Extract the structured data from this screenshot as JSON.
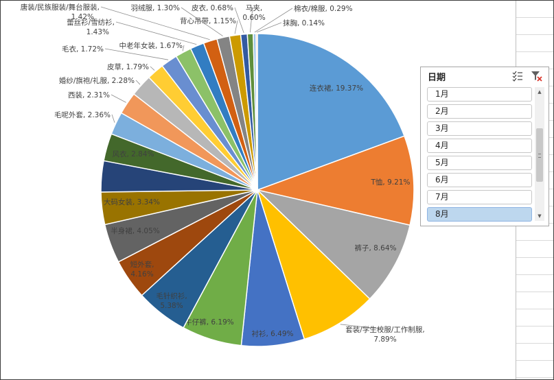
{
  "chart_data": {
    "type": "pie",
    "title": "",
    "start_angle_deg": 0,
    "direction": "clockwise",
    "slices": [
      {
        "label": "连衣裙",
        "value": 19.37,
        "display": "连衣裙, 19.37%",
        "color": "#5b9bd5"
      },
      {
        "label": "T恤",
        "value": 9.21,
        "display": "T恤, 9.21%",
        "color": "#ed7d31"
      },
      {
        "label": "裤子",
        "value": 8.64,
        "display": "裤子, 8.64%",
        "color": "#a5a5a5"
      },
      {
        "label": "套装/学生校服/工作制服",
        "value": 7.89,
        "display": "套装/学生校服/工作制服,",
        "display2": "7.89%",
        "color": "#ffc000"
      },
      {
        "label": "衬衫",
        "value": 6.49,
        "display": "衬衫, 6.49%",
        "color": "#4472c4"
      },
      {
        "label": "牛仔裤",
        "value": 6.19,
        "display": "牛仔裤, 6.19%",
        "color": "#70ad47"
      },
      {
        "label": "毛针织衫",
        "value": 5.38,
        "display": "毛针织衫,",
        "display2": "5.38%",
        "color": "#255e91"
      },
      {
        "label": "短外套",
        "value": 4.16,
        "display": "短外套,",
        "display2": "4.16%",
        "color": "#9e480e"
      },
      {
        "label": "半身裙",
        "value": 4.05,
        "display": "半身裙, 4.05%",
        "color": "#636363"
      },
      {
        "label": "大码女装",
        "value": 3.34,
        "display": "大码女装, 3.34%",
        "color": "#997300"
      },
      {
        "label": "",
        "value": 3.2,
        "display": "",
        "color": "#264478"
      },
      {
        "label": "风衣",
        "value": 2.84,
        "display": "风衣, 2.84%",
        "color": "#43682b"
      },
      {
        "label": "毛呢外套",
        "value": 2.36,
        "display": "毛呢外套, 2.36%",
        "color": "#7cafdd"
      },
      {
        "label": "西装",
        "value": 2.31,
        "display": "西装, 2.31%",
        "color": "#f1975a"
      },
      {
        "label": "婚纱/旗袍/礼服",
        "value": 2.28,
        "display": "婚纱/旗袍/礼服, 2.28%",
        "color": "#b7b7b7"
      },
      {
        "label": "皮草",
        "value": 1.79,
        "display": "皮草, 1.79%",
        "color": "#ffcd33"
      },
      {
        "label": "毛衣",
        "value": 1.72,
        "display": "毛衣, 1.72%",
        "color": "#698ed0"
      },
      {
        "label": "中老年女装",
        "value": 1.67,
        "display": "中老年女装, 1.67%",
        "color": "#8cc168"
      },
      {
        "label": "蕾丝衫/雪纺衫",
        "value": 1.43,
        "display": "蕾丝衫/雪纺衫,",
        "display2": "1.43%",
        "color": "#327dc2"
      },
      {
        "label": "唐装/民族服装/舞台服装",
        "value": 1.42,
        "display": "唐装/民族服装/舞台服装,",
        "display2": "1.42%",
        "color": "#d26012"
      },
      {
        "label": "羽绒服",
        "value": 1.3,
        "display": "羽绒服, 1.30%",
        "color": "#848484"
      },
      {
        "label": "背心吊带",
        "value": 1.15,
        "display": "背心吊带, 1.15%",
        "color": "#cc9a00"
      },
      {
        "label": "皮衣",
        "value": 0.68,
        "display": "皮衣, 0.68%",
        "color": "#335aa1"
      },
      {
        "label": "马夹",
        "value": 0.6,
        "display": "马夹,",
        "display2": "0.60%",
        "color": "#5f8f3c"
      },
      {
        "label": "棉衣/棉服",
        "value": 0.29,
        "display": "棉衣/棉服, 0.29%",
        "color": "#9dc3e6"
      },
      {
        "label": "抹胸",
        "value": 0.14,
        "display": "抹胸, 0.14%",
        "color": "#f4b183"
      }
    ]
  },
  "slicer": {
    "title": "日期",
    "items": [
      {
        "label": "1月",
        "selected": false
      },
      {
        "label": "2月",
        "selected": false
      },
      {
        "label": "3月",
        "selected": false
      },
      {
        "label": "4月",
        "selected": false
      },
      {
        "label": "5月",
        "selected": false
      },
      {
        "label": "6月",
        "selected": false
      },
      {
        "label": "7月",
        "selected": false
      },
      {
        "label": "8月",
        "selected": true
      }
    ],
    "multiselect_icon": "multi-select-icon",
    "clear_icon": "clear-filter-icon"
  }
}
